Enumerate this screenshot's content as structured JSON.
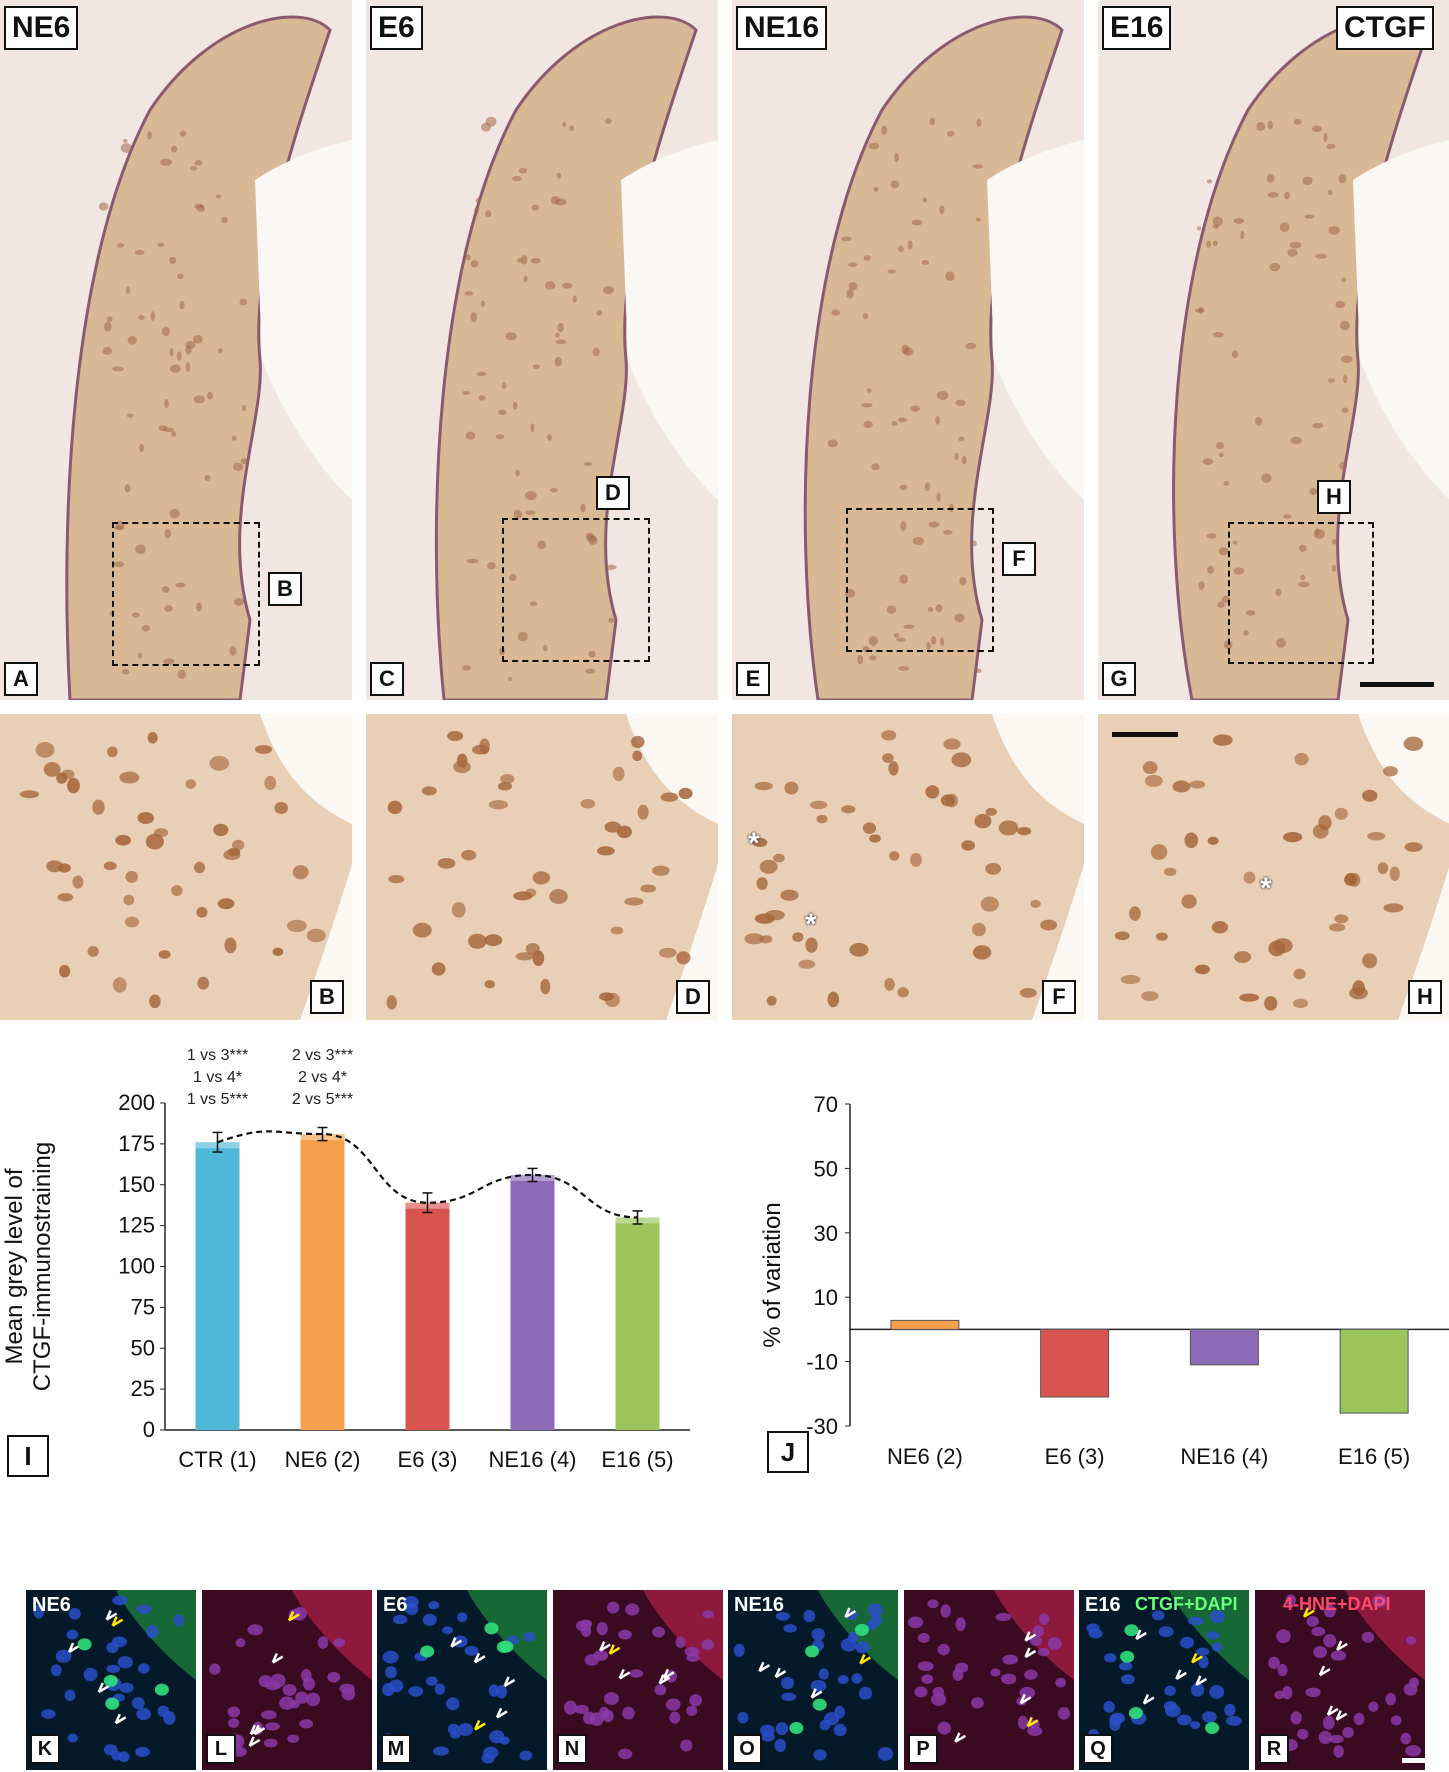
{
  "top_panels": [
    {
      "group": "NE6",
      "letter": "A",
      "inset_label": "B"
    },
    {
      "group": "E6",
      "letter": "C",
      "inset_label": "D"
    },
    {
      "group": "NE16",
      "letter": "E",
      "inset_label": "F"
    },
    {
      "group": "E16",
      "letter": "G",
      "inset_label": "H",
      "marker": "CTGF"
    }
  ],
  "inset_panels": [
    "B",
    "D",
    "F",
    "H"
  ],
  "asterisk": "*",
  "chart_I": {
    "letter": "I"
  },
  "chart_J": {
    "letter": "J"
  },
  "fluor_panels": [
    {
      "letter": "K",
      "group": "NE6"
    },
    {
      "letter": "L"
    },
    {
      "letter": "M",
      "group": "E6"
    },
    {
      "letter": "N"
    },
    {
      "letter": "O",
      "group": "NE16"
    },
    {
      "letter": "P"
    },
    {
      "letter": "Q",
      "group": "E16",
      "stain": "CTGF+DAPI"
    },
    {
      "letter": "R",
      "stain": "4-HNE+DAPI"
    }
  ],
  "colors": {
    "ctr": "#4FB8D8",
    "ne6": "#F7A04B",
    "e6": "#D9534F",
    "ne16": "#8E6BB8",
    "e16": "#9BC55A",
    "tissue": "#C8A079"
  },
  "chart_data": [
    {
      "type": "bar",
      "ylabel": "Mean grey level of CTGF-immunostraining",
      "categories": [
        "CTR (1)",
        "NE6 (2)",
        "E6 (3)",
        "NE16 (4)",
        "E16 (5)"
      ],
      "values": [
        176,
        181,
        139,
        156,
        130
      ],
      "errors": [
        6,
        4,
        6,
        4,
        4
      ],
      "yticks": [
        "0",
        "25",
        "50",
        "75",
        "100",
        "125",
        "150",
        "175",
        "200"
      ],
      "ylim": [
        0,
        200
      ],
      "trendline": "dashed",
      "annotations": [
        [
          "1 vs 3***",
          "1 vs 4*",
          "1 vs 5***"
        ],
        [
          "2 vs 3***",
          "2 vs 4*",
          "2 vs 5***"
        ]
      ]
    },
    {
      "type": "bar",
      "ylabel": "% of variation",
      "categories": [
        "NE6 (2)",
        "E6 (3)",
        "NE16 (4)",
        "E16 (5)"
      ],
      "values": [
        2.8,
        -21,
        -11,
        -26
      ],
      "yticks": [
        "70",
        "50",
        "30",
        "10",
        "-10",
        "-30"
      ],
      "ylim": [
        -30,
        70
      ]
    }
  ]
}
